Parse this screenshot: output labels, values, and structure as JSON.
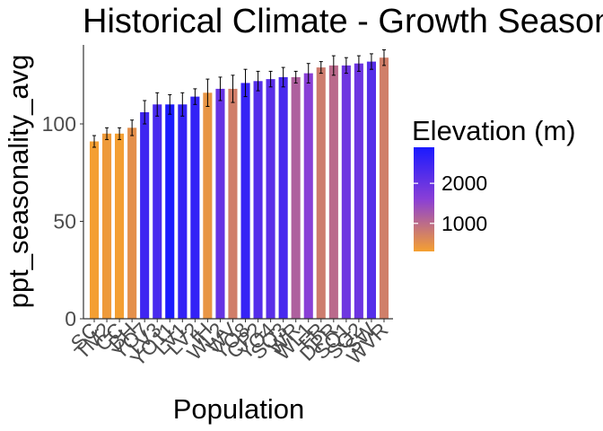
{
  "chart_data": {
    "type": "bar",
    "title": "Historical Climate - Growth Season",
    "xlabel": "Population",
    "ylabel": "ppt_seasonality_avg",
    "ylim": [
      0,
      140
    ],
    "yticks": [
      0,
      50,
      100
    ],
    "error_bars": true,
    "fill_by": "elevation",
    "legend": {
      "title": "Elevation (m)",
      "position": "right",
      "type": "colorbar",
      "range": [
        300,
        2900
      ],
      "ticks": [
        1000,
        2000
      ],
      "tick_labels": [
        "1000",
        "2000"
      ],
      "low_color": "#f5a030",
      "mid_color": "#8a3fd6",
      "high_color": "#1a1aff"
    },
    "categories": [
      "SC",
      "TM2",
      "CC",
      "BH",
      "YO7",
      "LV3",
      "YO11",
      "LV1",
      "LV2",
      "IH",
      "WL2",
      "WV",
      "YO8",
      "CP2",
      "YO4",
      "SQ3",
      "WR",
      "WL1",
      "FR",
      "DPR",
      "SQ1",
      "SQ2",
      "SW",
      "WVR"
    ],
    "values": [
      91,
      95,
      95,
      98,
      106,
      110,
      110,
      110,
      114,
      116,
      118,
      118,
      121,
      122,
      123,
      124,
      124,
      126,
      129,
      130,
      130,
      131,
      132,
      134
    ],
    "errors": [
      3,
      3,
      3,
      4,
      6,
      6,
      5,
      6,
      4,
      7,
      6,
      7,
      7,
      5,
      4,
      5,
      3,
      5,
      3,
      5,
      4,
      4,
      4,
      4
    ],
    "elevation": [
      313,
      379,
      313,
      511,
      2470,
      2353,
      2872,
      2593,
      2613,
      454,
      2020,
      749,
      2591,
      2244,
      2158,
      2373,
      1158,
      1614,
      787,
      1019,
      1921,
      1934,
      2200,
      748
    ]
  }
}
